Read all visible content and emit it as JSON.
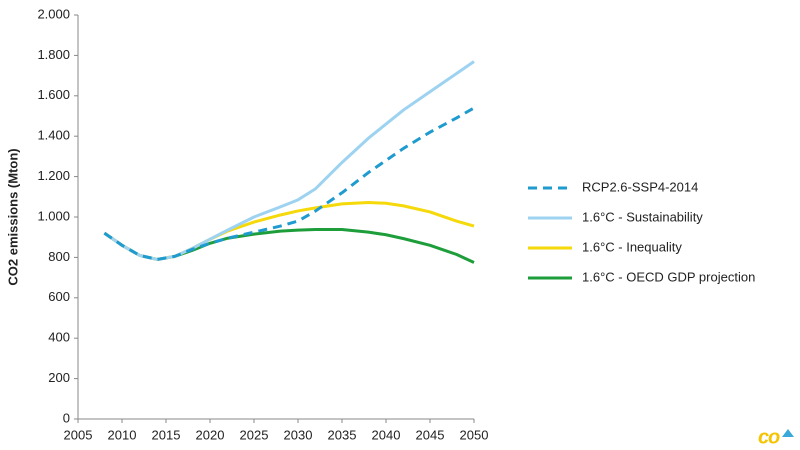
{
  "chart_data": {
    "type": "line",
    "y_label": "CO2 emissions (Mton)",
    "x": [
      2008,
      2010,
      2012,
      2014,
      2016,
      2018,
      2020,
      2022,
      2025,
      2028,
      2030,
      2032,
      2035,
      2038,
      2040,
      2042,
      2045,
      2048,
      2050
    ],
    "series": [
      {
        "name": "RCP2.6-SSP4-2014",
        "color": "#1f9bcf",
        "dashed": true,
        "values": [
          920,
          860,
          810,
          790,
          805,
          840,
          870,
          895,
          925,
          955,
          980,
          1030,
          1120,
          1220,
          1280,
          1340,
          1420,
          1490,
          1540
        ]
      },
      {
        "name": "1.6°C - Sustainability",
        "color": "#9dd3f0",
        "values": [
          920,
          860,
          810,
          790,
          805,
          845,
          890,
          935,
          1000,
          1050,
          1085,
          1140,
          1270,
          1390,
          1460,
          1530,
          1620,
          1710,
          1770
        ]
      },
      {
        "name": "1.6°C - Inequality",
        "color": "#f5d90a",
        "values": [
          920,
          860,
          810,
          790,
          805,
          845,
          890,
          930,
          975,
          1010,
          1030,
          1045,
          1065,
          1072,
          1068,
          1055,
          1025,
          980,
          955
        ]
      },
      {
        "name": "1.6°C - OECD GDP projection",
        "color": "#1e9e3a",
        "values": [
          920,
          860,
          810,
          790,
          805,
          835,
          870,
          895,
          915,
          930,
          935,
          938,
          938,
          925,
          912,
          893,
          860,
          815,
          775
        ]
      }
    ],
    "xlim": [
      2005,
      2050
    ],
    "xticks": [
      2005,
      2010,
      2015,
      2020,
      2025,
      2030,
      2035,
      2040,
      2045,
      2050
    ],
    "ylim": [
      0,
      2000
    ],
    "yticks": [
      0,
      200,
      400,
      600,
      800,
      {
        "value": 1000,
        "label": "1.000"
      },
      {
        "value": 1200,
        "label": "1.200"
      },
      {
        "value": 1400,
        "label": "1.400"
      },
      {
        "value": 1600,
        "label": "1.600"
      },
      {
        "value": 1800,
        "label": "1.800"
      },
      {
        "value": 2000,
        "label": "2.000"
      }
    ],
    "grid": false,
    "legend": "right"
  }
}
